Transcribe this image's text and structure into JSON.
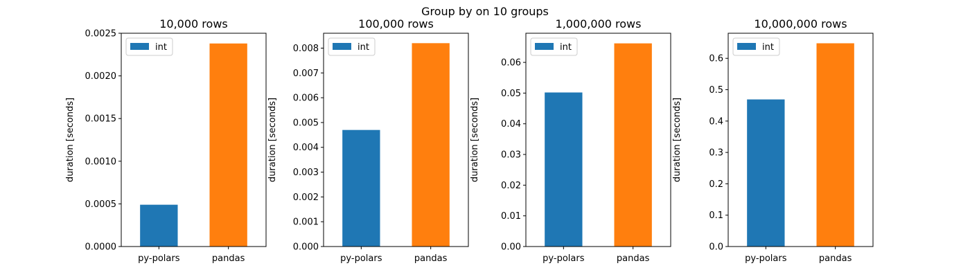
{
  "chart_data": {
    "suptitle": "Group by on 10 groups",
    "panels": [
      {
        "type": "bar",
        "title": "10,000 rows",
        "ylabel": "duration [seconds]",
        "categories": [
          "py-polars",
          "pandas"
        ],
        "values": [
          0.00049,
          0.00238
        ],
        "bar_colors": [
          "#1f77b4",
          "#ff7f0e"
        ],
        "ylim": [
          0,
          0.0025
        ],
        "yticks": [
          0,
          0.0005,
          0.001,
          0.0015,
          0.002,
          0.0025
        ],
        "ytick_labels": [
          "0.0000",
          "0.0005",
          "0.0010",
          "0.0015",
          "0.0020",
          "0.0025"
        ],
        "legend": [
          {
            "label": "int",
            "color": "#1f77b4"
          }
        ],
        "legend_position": "top-left"
      },
      {
        "type": "bar",
        "title": "100,000 rows",
        "ylabel": "duration [seconds]",
        "categories": [
          "py-polars",
          "pandas"
        ],
        "values": [
          0.0047,
          0.0082
        ],
        "bar_colors": [
          "#1f77b4",
          "#ff7f0e"
        ],
        "ylim": [
          0,
          0.0086
        ],
        "yticks": [
          0,
          0.001,
          0.002,
          0.003,
          0.004,
          0.005,
          0.006,
          0.007,
          0.008
        ],
        "ytick_labels": [
          "0.000",
          "0.001",
          "0.002",
          "0.003",
          "0.004",
          "0.005",
          "0.006",
          "0.007",
          "0.008"
        ],
        "legend": [
          {
            "label": "int",
            "color": "#1f77b4"
          }
        ],
        "legend_position": "top-left"
      },
      {
        "type": "bar",
        "title": "1,000,000 rows",
        "ylabel": "duration [seconds]",
        "categories": [
          "py-polars",
          "pandas"
        ],
        "values": [
          0.0502,
          0.0662
        ],
        "bar_colors": [
          "#1f77b4",
          "#ff7f0e"
        ],
        "ylim": [
          0,
          0.0695
        ],
        "yticks": [
          0,
          0.01,
          0.02,
          0.03,
          0.04,
          0.05,
          0.06
        ],
        "ytick_labels": [
          "0.00",
          "0.01",
          "0.02",
          "0.03",
          "0.04",
          "0.05",
          "0.06"
        ],
        "legend": [
          {
            "label": "int",
            "color": "#1f77b4"
          }
        ],
        "legend_position": "top-left"
      },
      {
        "type": "bar",
        "title": "10,000,000 rows",
        "ylabel": "duration [seconds]",
        "categories": [
          "py-polars",
          "pandas"
        ],
        "values": [
          0.469,
          0.648
        ],
        "bar_colors": [
          "#1f77b4",
          "#ff7f0e"
        ],
        "ylim": [
          0,
          0.68
        ],
        "yticks": [
          0,
          0.1,
          0.2,
          0.3,
          0.4,
          0.5,
          0.6
        ],
        "ytick_labels": [
          "0.0",
          "0.1",
          "0.2",
          "0.3",
          "0.4",
          "0.5",
          "0.6"
        ],
        "legend": [
          {
            "label": "int",
            "color": "#1f77b4"
          }
        ],
        "legend_position": "top-left"
      }
    ]
  }
}
